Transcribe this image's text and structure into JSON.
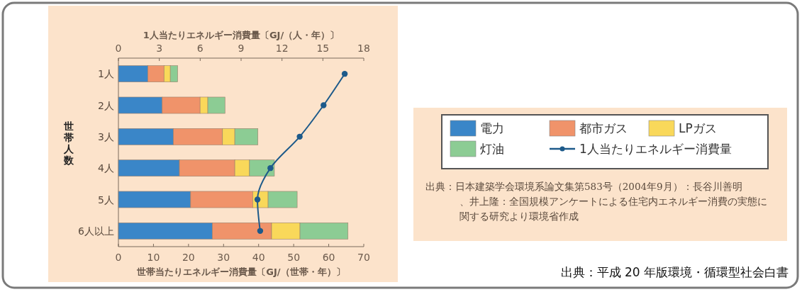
{
  "chart_data": {
    "type": "bar",
    "orientation": "horizontal",
    "stacked": true,
    "categories": [
      "1人",
      "2人",
      "3人",
      "4人",
      "5人",
      "6人以上"
    ],
    "series": [
      {
        "name": "電力",
        "color": "#3a86c8",
        "values": [
          8.4,
          12.5,
          15.7,
          17.4,
          20.6,
          26.8
        ]
      },
      {
        "name": "都市ガス",
        "color": "#f0936a",
        "values": [
          4.6,
          10.8,
          14.0,
          15.8,
          17.7,
          16.9
        ]
      },
      {
        "name": "LPガス",
        "color": "#f9d85a",
        "values": [
          1.8,
          2.2,
          3.5,
          4.2,
          4.4,
          8.1
        ]
      },
      {
        "name": "灯油",
        "color": "#8ccc94",
        "values": [
          2.1,
          4.9,
          6.6,
          7.1,
          8.3,
          13.7
        ]
      },
      {
        "name": "1人当たりエネルギー消費量",
        "type": "line",
        "axis": "x2",
        "color": "#1d5a8a",
        "values": [
          16.6,
          15.05,
          13.3,
          11.15,
          10.2,
          10.4
        ]
      }
    ],
    "xlim": [
      0,
      70
    ],
    "xticks": [
      0,
      10,
      20,
      30,
      40,
      50,
      60,
      70
    ],
    "x2lim": [
      0,
      18
    ],
    "x2ticks": [
      0,
      3,
      6,
      9,
      12,
      15,
      18
    ],
    "xlabel": "世帯当たりエネルギー消費量〔GJ/（世帯・年）〕",
    "x2label": "1人当たりエネルギー消費量〔GJ/（人・年）〕",
    "ylabel": "世帯人数",
    "marker": "circle",
    "legend": "right",
    "annotations": [
      "出典：日本建築学会環境系論文集第583号（2004年9月）：長谷川善明、井上隆：全国規模アンケートによる住宅内エネルギー消費の実態に関する研究より環境省作成",
      "出典：平成 20 年版環境・循環型社会白書"
    ]
  }
}
